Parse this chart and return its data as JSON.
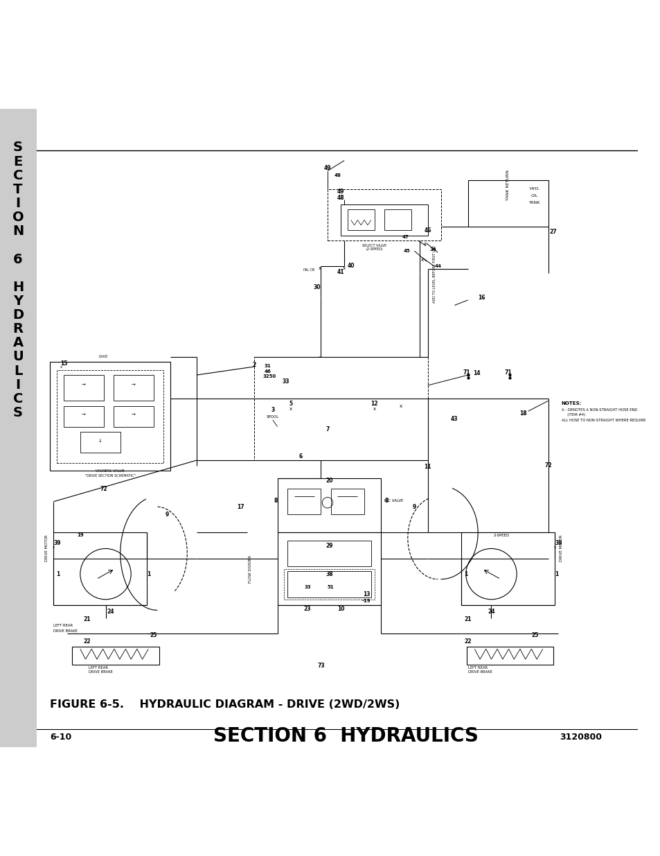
{
  "title": "SECTION 6  HYDRAULICS",
  "figure_label": "FIGURE 6-5.    HYDRAULIC DIAGRAM - DRIVE (2WD/2WS)",
  "page_left": "6-10",
  "page_right": "3120800",
  "sidebar_bg": "#cccccc",
  "bg_color": "#ffffff",
  "lc": "#000000",
  "title_fontsize": 20,
  "figure_label_fontsize": 11.5
}
